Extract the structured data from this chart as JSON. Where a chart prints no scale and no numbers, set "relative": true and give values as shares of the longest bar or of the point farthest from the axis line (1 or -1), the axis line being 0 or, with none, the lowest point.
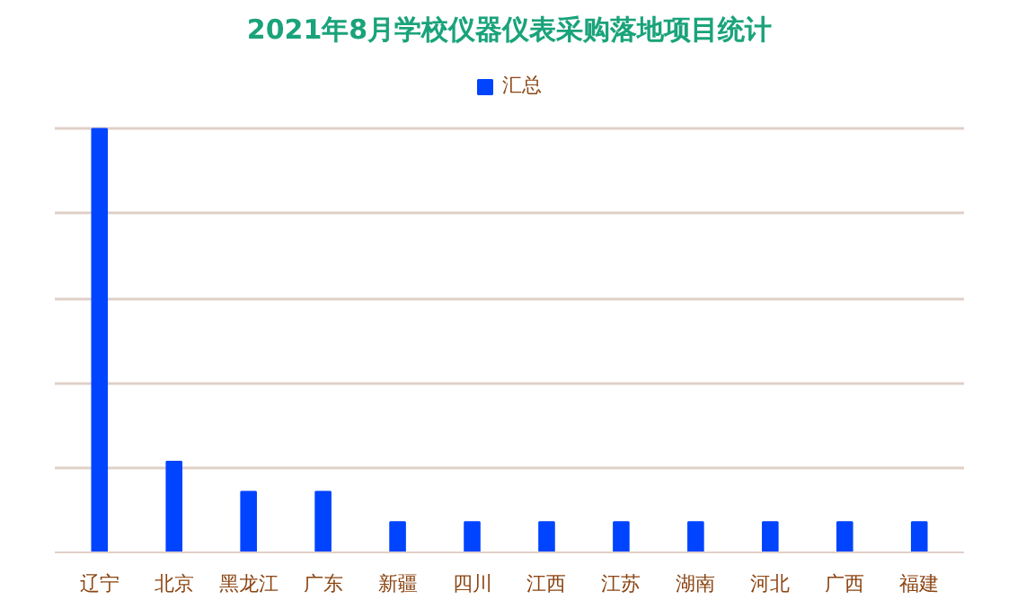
{
  "chart_data": {
    "type": "bar",
    "title": "2021年8月学校仪器仪表采购落地项目统计",
    "categories": [
      "辽宁",
      "北京",
      "黑龙江",
      "广东",
      "新疆",
      "四川",
      "江西",
      "江苏",
      "湖南",
      "河北",
      "广西",
      "福建"
    ],
    "series": [
      {
        "name": "汇总",
        "color": "#0044ff",
        "values": [
          1,
          0.2143,
          0.1429,
          0.1429,
          0.0714,
          0.0714,
          0.0714,
          0.0714,
          0.0714,
          0.0714,
          0.0714,
          0.0714
        ]
      }
    ],
    "relative": true,
    "grid": "y",
    "legend": "top",
    "tick_labels": "x"
  }
}
